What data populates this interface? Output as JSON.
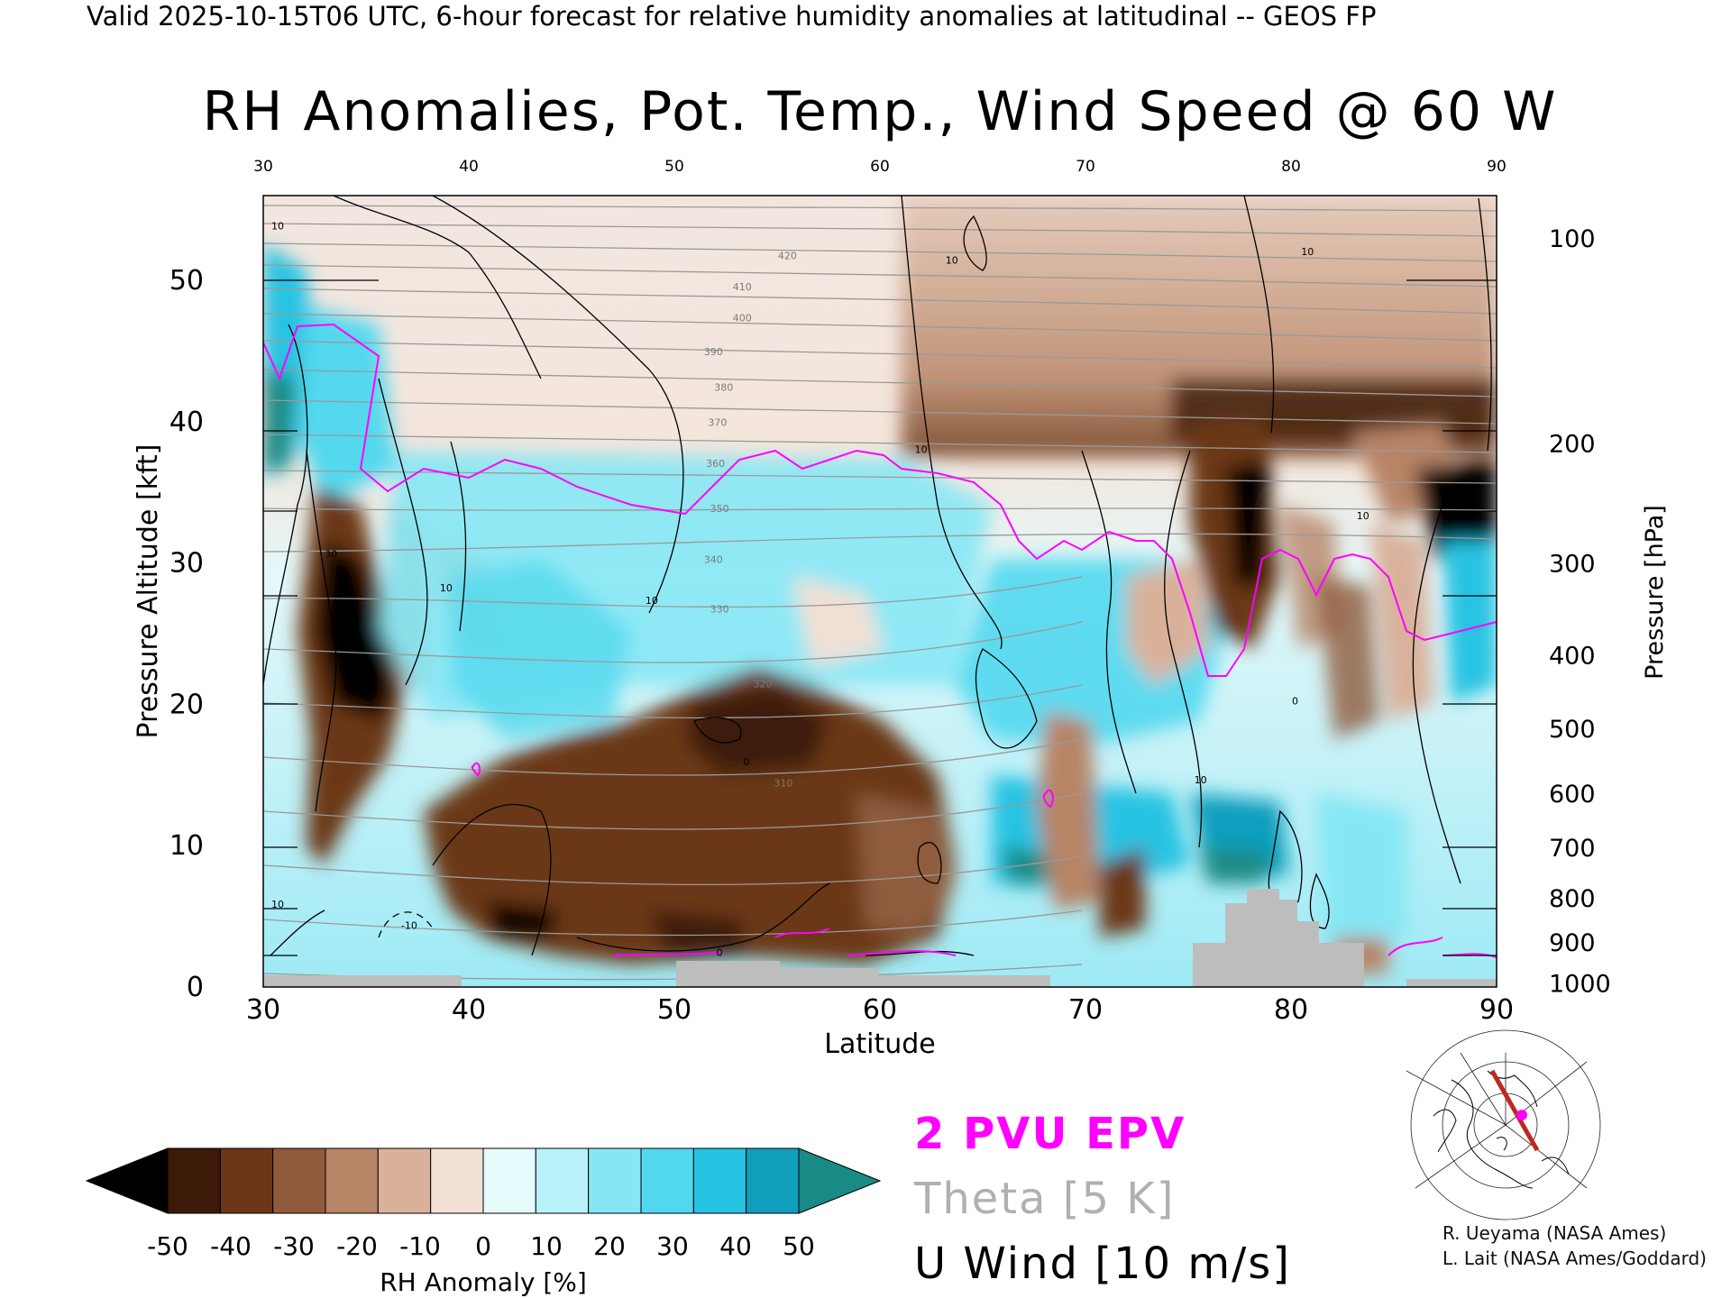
{
  "header": "Valid 2025-10-15T06 UTC, 6-hour forecast for relative humidity anomalies at latitudinal -- GEOS FP",
  "chart_data": {
    "type": "heatmap",
    "title": "RH Anomalies, Pot. Temp., Wind Speed @ 60 W",
    "xlabel": "Latitude",
    "ylabel": "Pressure Altitude [kft]",
    "ylabel_right": "Pressure [hPa]",
    "xlim": [
      30,
      90
    ],
    "ylim": [
      0,
      56
    ],
    "x_ticks": [
      30,
      40,
      50,
      60,
      70,
      80,
      90
    ],
    "y_ticks": [
      0,
      10,
      20,
      30,
      40,
      50
    ],
    "pressure_ticks": [
      {
        "label": "100",
        "kft": 53
      },
      {
        "label": "200",
        "kft": 38.5
      },
      {
        "label": "300",
        "kft": 30
      },
      {
        "label": "400",
        "kft": 23.5
      },
      {
        "label": "500",
        "kft": 18.3
      },
      {
        "label": "600",
        "kft": 13.7
      },
      {
        "label": "700",
        "kft": 9.9
      },
      {
        "label": "800",
        "kft": 6.3
      },
      {
        "label": "900",
        "kft": 3.2
      },
      {
        "label": "1000",
        "kft": 0.3
      }
    ],
    "colorbar": {
      "label": "RH Anomaly [%]",
      "ticks": [
        "-50",
        "-40",
        "-30",
        "-20",
        "-10",
        "0",
        "10",
        "20",
        "30",
        "40",
        "50"
      ],
      "colors": [
        "#000000",
        "#3d1a08",
        "#6b3718",
        "#8f5b3c",
        "#b78466",
        "#d9b19b",
        "#f1e0d4",
        "#e6fbfb",
        "#b8f2f8",
        "#86e7f4",
        "#52d8ee",
        "#27c3e2",
        "#0f9fbd",
        "#1a8a84"
      ]
    },
    "theta_labels": [
      {
        "v": "420",
        "x": 55.5,
        "y": 51.5
      },
      {
        "v": "410",
        "x": 53.3,
        "y": 49.3
      },
      {
        "v": "400",
        "x": 53.3,
        "y": 47.1
      },
      {
        "v": "390",
        "x": 51.9,
        "y": 44.7
      },
      {
        "v": "380",
        "x": 52.4,
        "y": 42.2
      },
      {
        "v": "370",
        "x": 52.1,
        "y": 39.7
      },
      {
        "v": "360",
        "x": 52.0,
        "y": 36.8
      },
      {
        "v": "350",
        "x": 52.2,
        "y": 33.6
      },
      {
        "v": "340",
        "x": 51.9,
        "y": 30.0
      },
      {
        "v": "330",
        "x": 52.2,
        "y": 26.5
      },
      {
        "v": "320",
        "x": 54.3,
        "y": 21.2
      },
      {
        "v": "310",
        "x": 55.3,
        "y": 14.2
      }
    ],
    "wind_labels": [
      {
        "v": "10",
        "x": 30.7,
        "y": 53.6
      },
      {
        "v": "10",
        "x": 63.5,
        "y": 51.2
      },
      {
        "v": "10",
        "x": 80.8,
        "y": 51.8
      },
      {
        "v": "10",
        "x": 62.0,
        "y": 37.8
      },
      {
        "v": "30",
        "x": 33.3,
        "y": 30.4
      },
      {
        "v": "10",
        "x": 38.9,
        "y": 28.0
      },
      {
        "v": "10",
        "x": 48.9,
        "y": 27.1
      },
      {
        "v": "10",
        "x": 83.5,
        "y": 33.1
      },
      {
        "v": "10",
        "x": 75.6,
        "y": 14.4
      },
      {
        "v": "10",
        "x": 30.7,
        "y": 5.6
      },
      {
        "v": "-10",
        "x": 37.1,
        "y": 4.1
      },
      {
        "v": "0",
        "x": 52.2,
        "y": 2.2
      },
      {
        "v": "0",
        "x": 53.5,
        "y": 15.7
      },
      {
        "v": "0",
        "x": 80.2,
        "y": 20.0
      }
    ]
  },
  "legend": {
    "pv": "2 PVU EPV",
    "pv_color": "#ff00ff",
    "theta": "Theta [5 K]",
    "theta_color": "#b0b0b0",
    "uwind": "U Wind [10 m/s]"
  },
  "credits": {
    "line1": "R. Ueyama (NASA Ames)",
    "line2": "L. Lait (NASA Ames/Goddard)"
  },
  "map_inset": {
    "section_color": "#c0281e",
    "marker_color": "#ff00ff"
  }
}
